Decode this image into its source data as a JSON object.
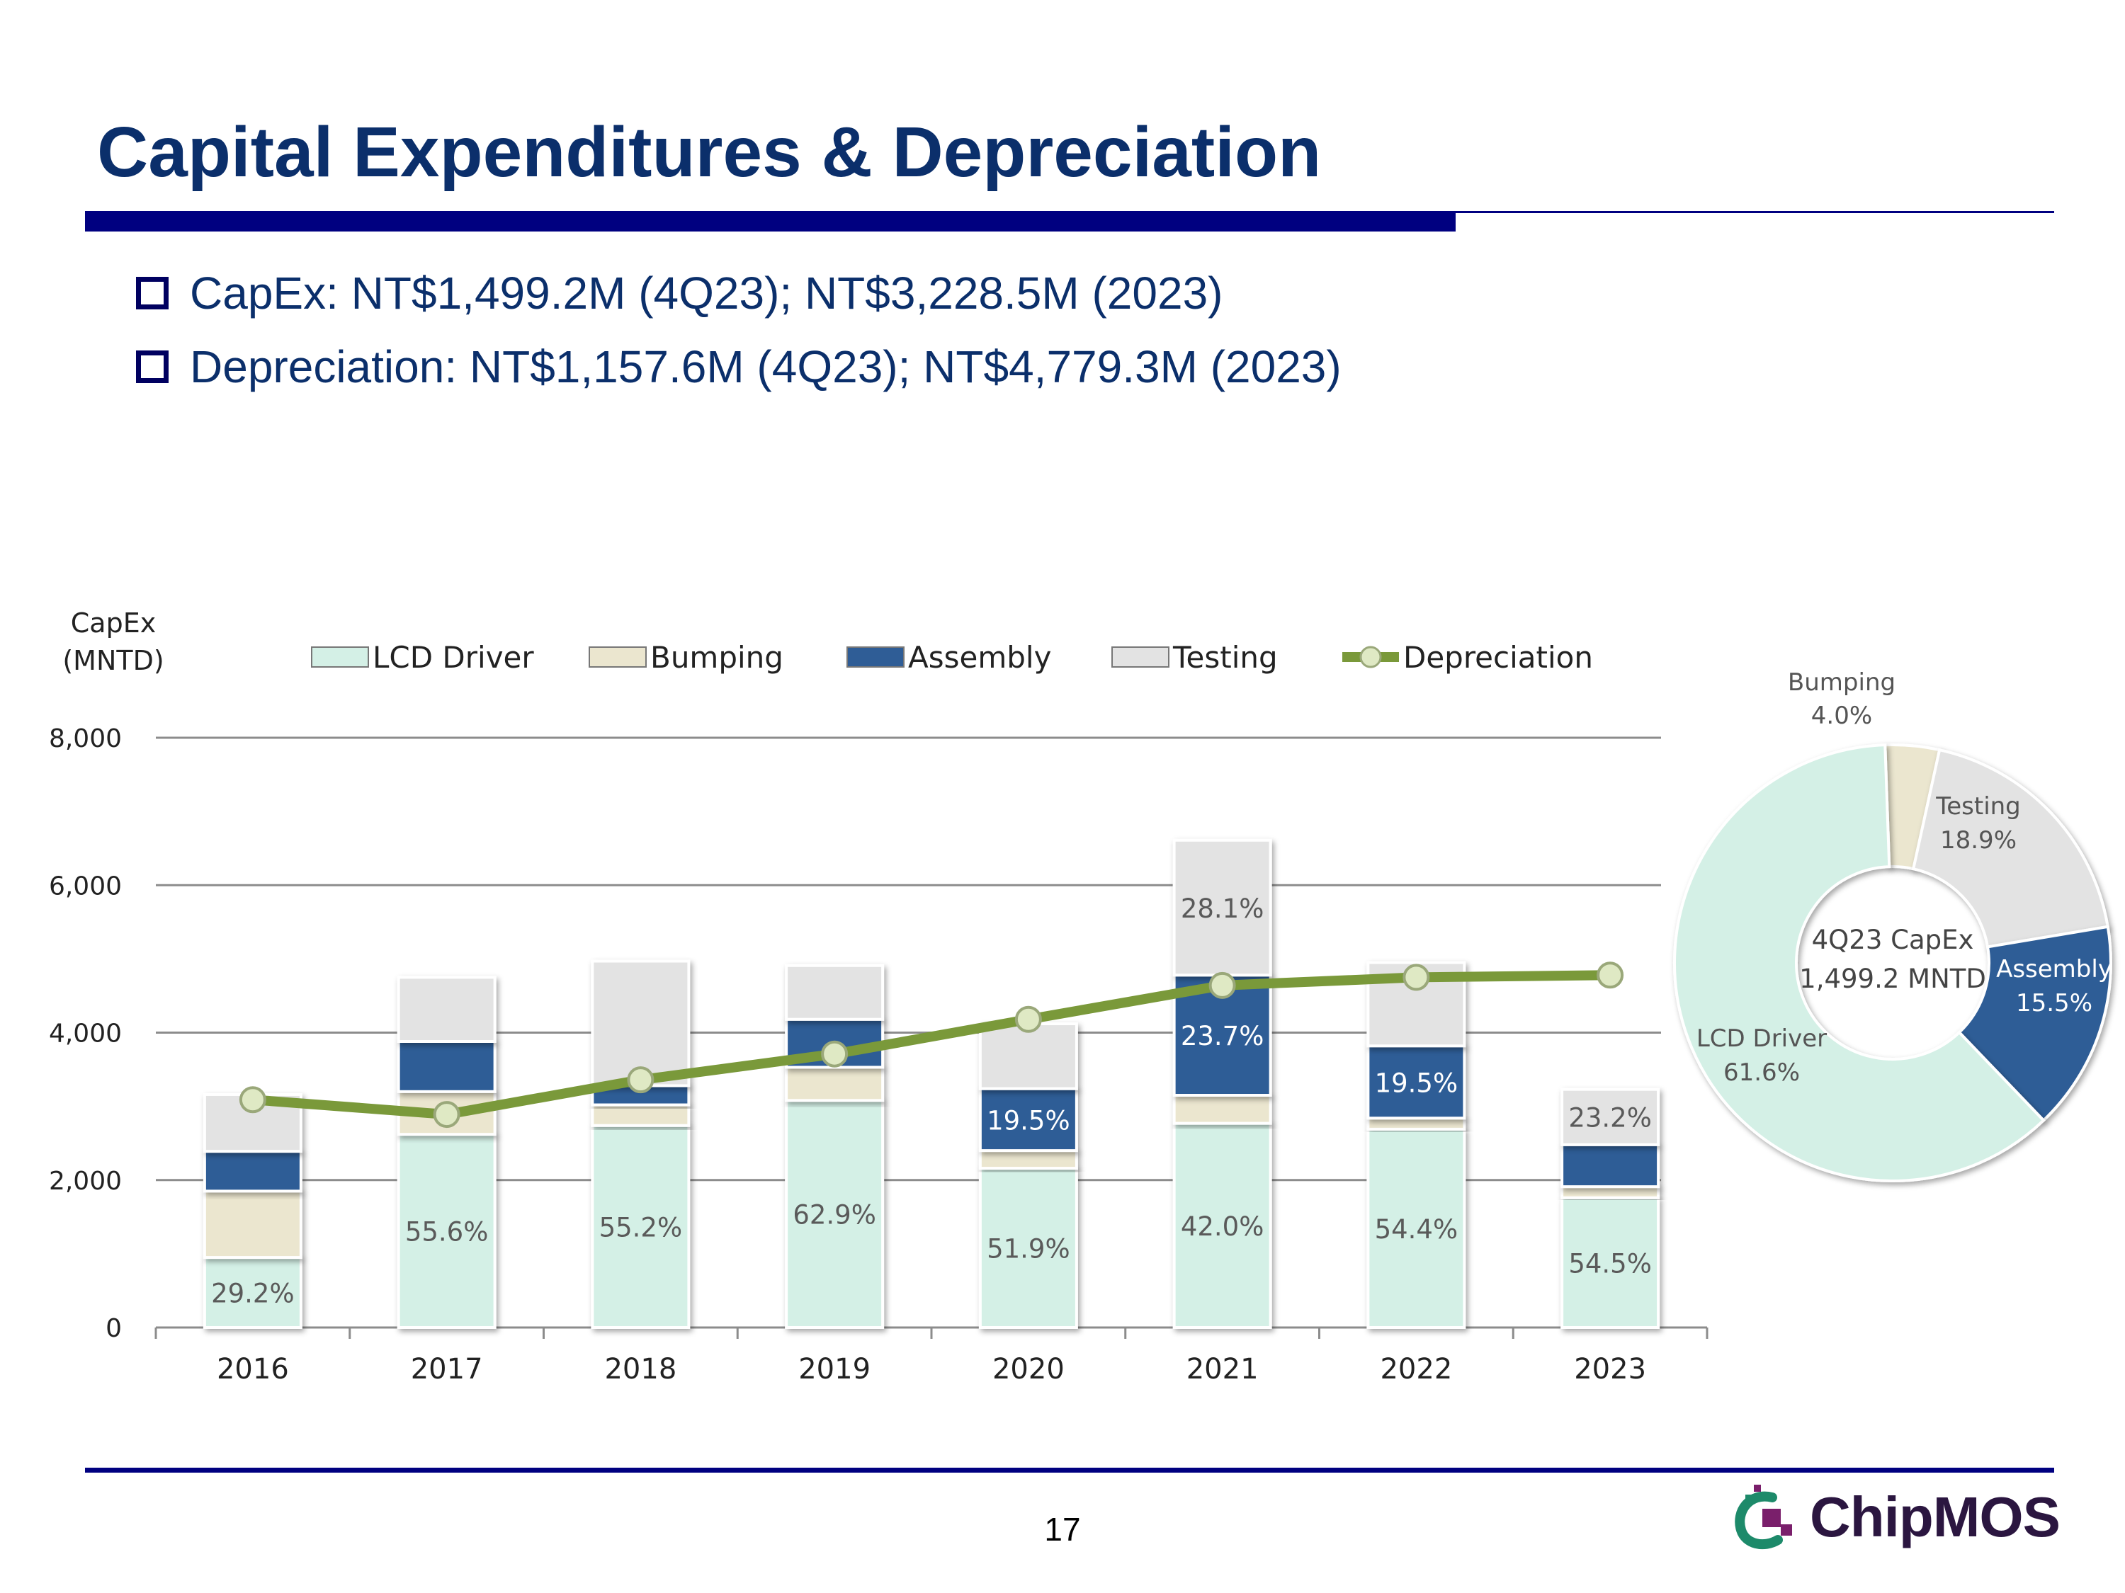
{
  "title": "Capital Expenditures & Depreciation",
  "bullets": [
    "CapEx: NT$1,499.2M (4Q23); NT$3,228.5M (2023)",
    "Depreciation: NT$1,157.6M (4Q23); NT$4,779.3M (2023)"
  ],
  "page_number": "17",
  "logo_text": "ChipMOS",
  "colors": {
    "title": "#0b2f6b",
    "rule": "#000080",
    "lcd": "#d4f0e6",
    "bumping": "#ebe6cf",
    "assembly": "#2f5d96",
    "testing": "#e3e3e3",
    "depreciation": "#7a993a"
  },
  "chart_data": [
    {
      "type": "bar",
      "stacked": true,
      "ylabel": "CapEx",
      "ylabel_unit": "(MNTD)",
      "ylim": [
        0,
        8000
      ],
      "yticks": [
        0,
        2000,
        4000,
        6000,
        8000
      ],
      "ytick_labels": [
        "0",
        "2,000",
        "4,000",
        "6,000",
        "8,000"
      ],
      "categories": [
        "2016",
        "2017",
        "2018",
        "2019",
        "2020",
        "2021",
        "2022",
        "2023"
      ],
      "series": [
        {
          "name": "LCD Driver",
          "values": [
            950,
            2620,
            2740,
            3080,
            2160,
            2770,
            2690,
            1760
          ]
        },
        {
          "name": "Bumping",
          "values": [
            900,
            580,
            280,
            450,
            240,
            380,
            150,
            150
          ]
        },
        {
          "name": "Assembly",
          "values": [
            540,
            680,
            260,
            650,
            840,
            1630,
            980,
            570
          ]
        },
        {
          "name": "Testing",
          "values": [
            770,
            870,
            1690,
            730,
            880,
            1830,
            1130,
            750
          ]
        }
      ],
      "line": {
        "name": "Depreciation",
        "values": [
          3090,
          2890,
          3360,
          3710,
          4180,
          4640,
          4750,
          4780
        ]
      },
      "labels": [
        {
          "index": 0,
          "series": "LCD Driver",
          "text": "29.2%"
        },
        {
          "index": 1,
          "series": "LCD Driver",
          "text": "55.6%"
        },
        {
          "index": 2,
          "series": "LCD Driver",
          "text": "55.2%"
        },
        {
          "index": 3,
          "series": "LCD Driver",
          "text": "62.9%"
        },
        {
          "index": 4,
          "series": "LCD Driver",
          "text": "51.9%"
        },
        {
          "index": 4,
          "series": "Assembly",
          "text": "19.5%"
        },
        {
          "index": 5,
          "series": "LCD Driver",
          "text": "42.0%"
        },
        {
          "index": 5,
          "series": "Assembly",
          "text": "23.7%"
        },
        {
          "index": 5,
          "series": "Testing",
          "text": "28.1%"
        },
        {
          "index": 6,
          "series": "LCD Driver",
          "text": "54.4%"
        },
        {
          "index": 6,
          "series": "Assembly",
          "text": "19.5%"
        },
        {
          "index": 7,
          "series": "LCD Driver",
          "text": "54.5%"
        },
        {
          "index": 7,
          "series": "Testing",
          "text": "23.2%"
        }
      ],
      "legend": [
        "LCD Driver",
        "Bumping",
        "Assembly",
        "Testing",
        "Depreciation"
      ],
      "legend_position": "top",
      "grid": true
    },
    {
      "type": "pie",
      "donut": true,
      "title": "4Q23 CapEx",
      "subtitle": "1,499.2 MNTD",
      "slices": [
        {
          "name": "Bumping",
          "pct_label": "4.0%",
          "value": 4.0
        },
        {
          "name": "Testing",
          "pct_label": "18.9%",
          "value": 18.9
        },
        {
          "name": "Assembly",
          "pct_label": "15.5%",
          "value": 15.5
        },
        {
          "name": "LCD Driver",
          "pct_label": "61.6%",
          "value": 61.6
        }
      ]
    }
  ]
}
